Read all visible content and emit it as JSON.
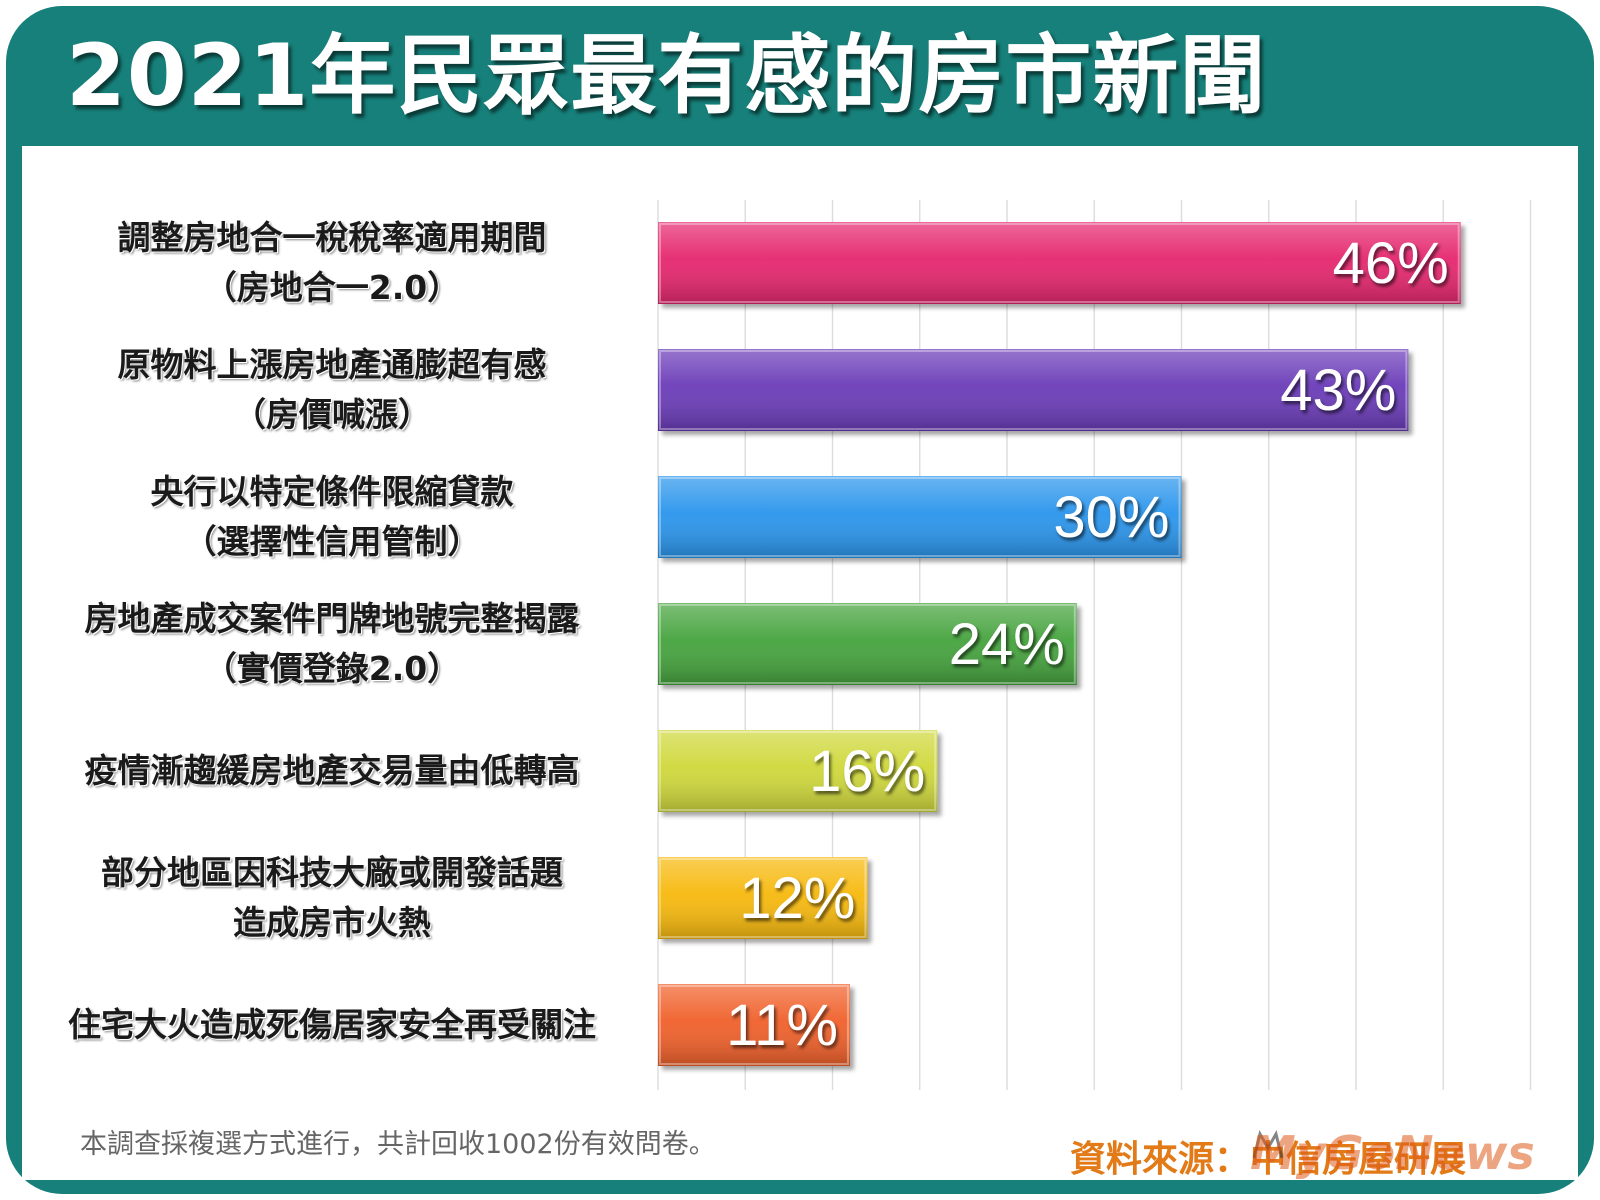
{
  "title": "2021年民眾最有感的房市新聞",
  "chart_data": {
    "type": "bar",
    "orientation": "horizontal",
    "title": "2021年民眾最有感的房市新聞",
    "categories": [
      [
        "調整房地合一稅稅率適用期間",
        "（房地合一2.0）"
      ],
      [
        "原物料上漲房地產通膨超有感",
        "（房價喊漲）"
      ],
      [
        "央行以特定條件限縮貸款",
        "（選擇性信用管制）"
      ],
      [
        "房地產成交案件門牌地號完整揭露",
        "（實價登錄2.0）"
      ],
      [
        "疫情漸趨緩房地產交易量由低轉高"
      ],
      [
        "部分地區因科技大廠或開發話題",
        "造成房市火熱"
      ],
      [
        "住宅大火造成死傷居家安全再受關注"
      ]
    ],
    "values": [
      46,
      43,
      30,
      24,
      16,
      12,
      11
    ],
    "value_labels": [
      "46%",
      "43%",
      "30%",
      "24%",
      "16%",
      "12%",
      "11%"
    ],
    "bar_colors": [
      "#e5286e",
      "#6a3ab8",
      "#2a95ec",
      "#44a33c",
      "#cfd83a",
      "#f7b90d",
      "#f0602a"
    ],
    "xlim": [
      0,
      50
    ],
    "grid": true,
    "legend": "none"
  },
  "note": "本調查採複選方式進行，共計回收1002份有效問卷。",
  "source": "資料來源：中信房屋研展",
  "watermark": "MyGoNews",
  "colors": {
    "frame": "#17807a",
    "grid": "#dcdcdc",
    "source": "#e27a18"
  }
}
